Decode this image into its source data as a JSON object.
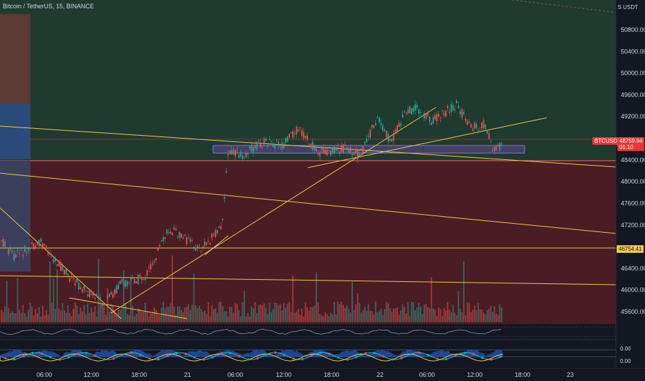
{
  "header": {
    "symbol_title": "Bitcoin / TetherUS, 15, BINANCE",
    "currency": "USDT",
    "currency_prefix": "S"
  },
  "price_axis": {
    "labels": [
      "50800.00",
      "50400.00",
      "50000.00",
      "49600.00",
      "49200.00",
      "48400.00",
      "48000.00",
      "47600.00",
      "47200.00",
      "46400.00",
      "46000.00",
      "45600.00"
    ],
    "values": [
      50800,
      50400,
      50000,
      49600,
      49200,
      48400,
      48000,
      47600,
      47200,
      46400,
      46000,
      45600
    ]
  },
  "time_axis": {
    "labels": [
      "06:00",
      "12:00",
      "18:00",
      "21",
      "06:00",
      "12:00",
      "18:00",
      "22",
      "06:00",
      "12:00",
      "18:00",
      "23"
    ]
  },
  "tags": {
    "btc_label": "BTCUSDT",
    "btc_price": "48759.94",
    "btc_countdown": "01:10",
    "level_price": "46754.41"
  },
  "oscillators": {
    "upper_value": "0.00",
    "lower_value": "0.00"
  },
  "colors": {
    "background": "#131722",
    "green_zone": "#1f3a2e",
    "red_zone": "#4a1c23",
    "candle_up": "#26a69a",
    "candle_down": "#ef5350",
    "trendline": "#f2c94c",
    "purple_box": "#6a4fa3"
  }
}
